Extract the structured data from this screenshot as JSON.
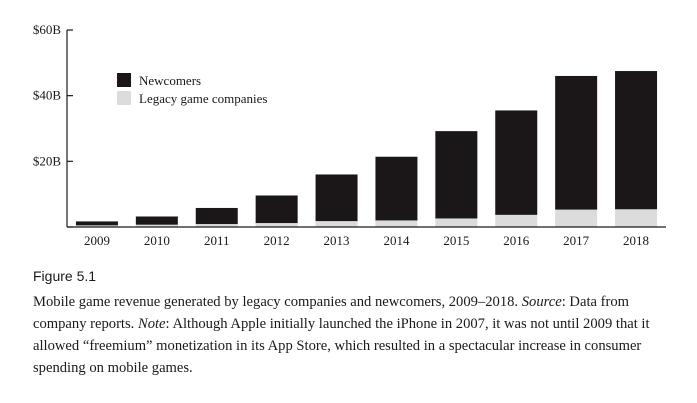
{
  "chart_data": {
    "type": "bar",
    "stacked": true,
    "categories": [
      "2009",
      "2010",
      "2011",
      "2012",
      "2013",
      "2014",
      "2015",
      "2016",
      "2017",
      "2018"
    ],
    "series": [
      {
        "name": "Legacy game companies",
        "color": "#dcdcdc",
        "values": [
          0.5,
          0.7,
          0.9,
          1.2,
          1.8,
          2.0,
          2.6,
          3.7,
          5.3,
          5.4
        ]
      },
      {
        "name": "Newcomers",
        "color": "#1b1718",
        "values": [
          1.2,
          2.5,
          4.9,
          8.4,
          14.2,
          19.4,
          26.6,
          31.8,
          40.7,
          42.1
        ]
      }
    ],
    "ylim": [
      0,
      60
    ],
    "yticks": [
      0,
      20,
      40,
      60
    ],
    "ytick_labels": [
      "",
      "$20B",
      "$40B",
      "$60B"
    ],
    "legend_entries": [
      "Newcomers",
      "Legacy game companies"
    ],
    "legend_position": "upper-left",
    "grid": false
  },
  "figure": {
    "label": "Figure 5.1",
    "caption_main": "Mobile game revenue generated by legacy companies and newcomers, 2009–2018. ",
    "source_label": "Source",
    "source_text": ": Data from company reports. ",
    "note_label": "Note",
    "note_text": ": Although Apple initially launched the iPhone in 2007, it was not until 2009 that it allowed “freemium” monetization in its App Store, which resulted in a spectacular increase in consumer spending on mobile games."
  }
}
